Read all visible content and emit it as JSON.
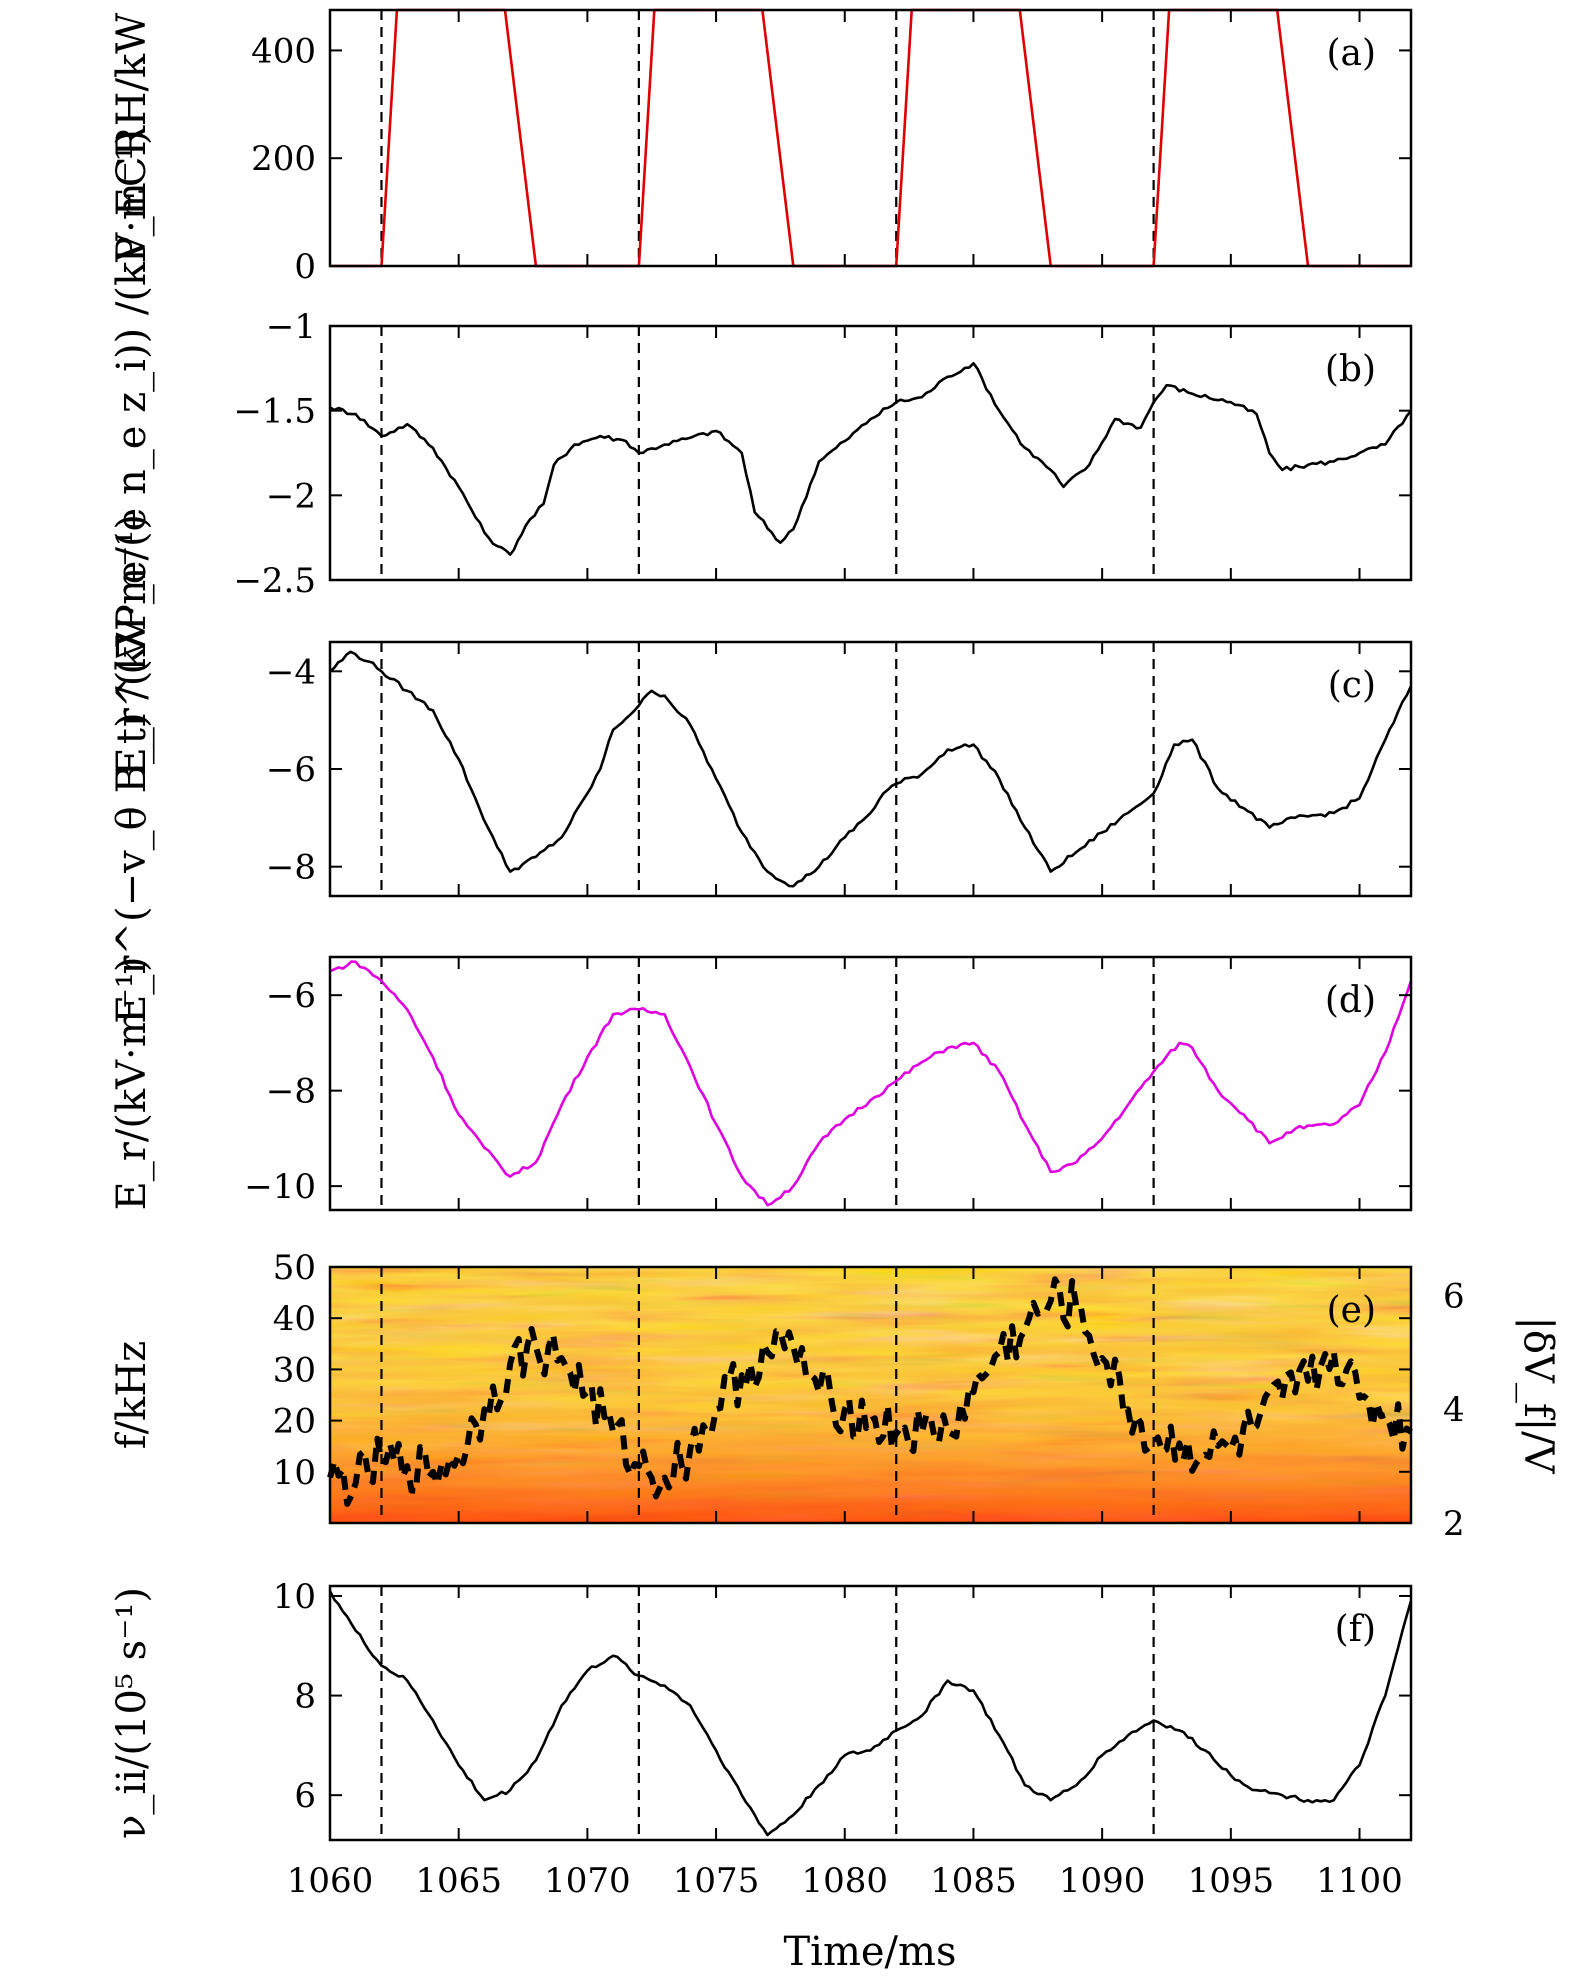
{
  "chart_data": [
    {
      "type": "line",
      "panel_label": "(a)",
      "ylabel": "P_ECRH/kW",
      "ylim": [
        0,
        475
      ],
      "yticks": [
        0,
        200,
        400
      ],
      "series": [
        {
          "name": "",
          "color": "#e00000",
          "points": [
            [
              1060,
              0
            ],
            [
              1062,
              0
            ],
            [
              1062.6,
              475
            ],
            [
              1066.8,
              475
            ],
            [
              1068,
              0
            ],
            [
              1072,
              0
            ],
            [
              1072.6,
              475
            ],
            [
              1076.8,
              475
            ],
            [
              1078,
              0
            ],
            [
              1082,
              0
            ],
            [
              1082.6,
              475
            ],
            [
              1086.8,
              475
            ],
            [
              1088,
              0
            ],
            [
              1092,
              0
            ],
            [
              1092.6,
              475
            ],
            [
              1096.8,
              475
            ],
            [
              1098,
              0
            ],
            [
              1102,
              0
            ]
          ]
        }
      ]
    },
    {
      "type": "line",
      "panel_label": "(b)",
      "ylabel": "E_r^(∇P_e/(e n_e z_i)) /(kV·m⁻¹)",
      "ylim": [
        -2.5,
        -1.0
      ],
      "yticks": [
        -2.5,
        -2.0,
        -1.5,
        -1.0
      ],
      "series": [
        {
          "name": "",
          "color": "#000000",
          "points": [
            [
              1060,
              -1.48
            ],
            [
              1061,
              -1.52
            ],
            [
              1062,
              -1.65
            ],
            [
              1063,
              -1.58
            ],
            [
              1064,
              -1.72
            ],
            [
              1065,
              -1.95
            ],
            [
              1066,
              -2.22
            ],
            [
              1066.5,
              -2.3
            ],
            [
              1067,
              -2.35
            ],
            [
              1067.6,
              -2.18
            ],
            [
              1068.3,
              -2.05
            ],
            [
              1068.7,
              -1.82
            ],
            [
              1069.5,
              -1.7
            ],
            [
              1070.5,
              -1.65
            ],
            [
              1071.5,
              -1.68
            ],
            [
              1072,
              -1.75
            ],
            [
              1073,
              -1.7
            ],
            [
              1074,
              -1.66
            ],
            [
              1075,
              -1.62
            ],
            [
              1076,
              -1.75
            ],
            [
              1076.5,
              -2.1
            ],
            [
              1077.5,
              -2.28
            ],
            [
              1078,
              -2.2
            ],
            [
              1079,
              -1.8
            ],
            [
              1080,
              -1.68
            ],
            [
              1081,
              -1.55
            ],
            [
              1082,
              -1.45
            ],
            [
              1083,
              -1.42
            ],
            [
              1084,
              -1.3
            ],
            [
              1085,
              -1.22
            ],
            [
              1086,
              -1.5
            ],
            [
              1087,
              -1.72
            ],
            [
              1088,
              -1.85
            ],
            [
              1088.5,
              -1.95
            ],
            [
              1089.5,
              -1.82
            ],
            [
              1090.5,
              -1.55
            ],
            [
              1091.5,
              -1.6
            ],
            [
              1092,
              -1.45
            ],
            [
              1092.5,
              -1.35
            ],
            [
              1093.5,
              -1.4
            ],
            [
              1095,
              -1.45
            ],
            [
              1096,
              -1.52
            ],
            [
              1096.5,
              -1.75
            ],
            [
              1097,
              -1.85
            ],
            [
              1098,
              -1.82
            ],
            [
              1099,
              -1.8
            ],
            [
              1100,
              -1.75
            ],
            [
              1101,
              -1.7
            ],
            [
              1102,
              -1.5
            ]
          ]
        }
      ]
    },
    {
      "type": "line",
      "panel_label": "(c)",
      "ylabel": "E_r^(−v_θ B_t) /(kV·m⁻¹)",
      "ylim": [
        -8.6,
        -3.4
      ],
      "yticks": [
        -8,
        -6,
        -4
      ],
      "series": [
        {
          "name": "",
          "color": "#000000",
          "points": [
            [
              1060,
              -4.0
            ],
            [
              1060.8,
              -3.6
            ],
            [
              1061.5,
              -3.8
            ],
            [
              1062,
              -4.0
            ],
            [
              1063,
              -4.4
            ],
            [
              1064,
              -4.8
            ],
            [
              1065,
              -5.8
            ],
            [
              1065.8,
              -6.8
            ],
            [
              1066.5,
              -7.6
            ],
            [
              1067,
              -8.1
            ],
            [
              1068,
              -7.8
            ],
            [
              1069,
              -7.4
            ],
            [
              1070,
              -6.5
            ],
            [
              1070.5,
              -6.0
            ],
            [
              1071,
              -5.2
            ],
            [
              1072,
              -4.7
            ],
            [
              1072.5,
              -4.4
            ],
            [
              1073,
              -4.5
            ],
            [
              1074,
              -5.1
            ],
            [
              1075,
              -6.2
            ],
            [
              1076,
              -7.3
            ],
            [
              1077,
              -8.1
            ],
            [
              1078,
              -8.4
            ],
            [
              1079,
              -8.0
            ],
            [
              1080,
              -7.4
            ],
            [
              1081,
              -6.9
            ],
            [
              1081.5,
              -6.5
            ],
            [
              1082,
              -6.3
            ],
            [
              1083,
              -6.1
            ],
            [
              1084,
              -5.6
            ],
            [
              1085,
              -5.5
            ],
            [
              1086,
              -6.2
            ],
            [
              1087,
              -7.2
            ],
            [
              1088,
              -8.1
            ],
            [
              1089,
              -7.7
            ],
            [
              1090,
              -7.3
            ],
            [
              1091,
              -6.9
            ],
            [
              1092,
              -6.5
            ],
            [
              1092.8,
              -5.5
            ],
            [
              1093.5,
              -5.4
            ],
            [
              1094.5,
              -6.4
            ],
            [
              1095.5,
              -6.8
            ],
            [
              1096.5,
              -7.2
            ],
            [
              1097.5,
              -7.0
            ],
            [
              1099,
              -6.9
            ],
            [
              1100,
              -6.6
            ],
            [
              1101,
              -5.4
            ],
            [
              1102,
              -4.3
            ]
          ]
        }
      ]
    },
    {
      "type": "line",
      "panel_label": "(d)",
      "ylabel": "E_r/(kV·m⁻¹)",
      "ylim": [
        -10.5,
        -5.2
      ],
      "yticks": [
        -10,
        -8,
        -6
      ],
      "series": [
        {
          "name": "",
          "color": "#e000e0",
          "points": [
            [
              1060,
              -5.5
            ],
            [
              1061,
              -5.3
            ],
            [
              1062,
              -5.7
            ],
            [
              1063,
              -6.3
            ],
            [
              1064,
              -7.3
            ],
            [
              1065,
              -8.5
            ],
            [
              1066,
              -9.2
            ],
            [
              1067,
              -9.8
            ],
            [
              1068,
              -9.5
            ],
            [
              1069,
              -8.3
            ],
            [
              1070,
              -7.3
            ],
            [
              1071,
              -6.4
            ],
            [
              1072,
              -6.3
            ],
            [
              1073,
              -6.4
            ],
            [
              1074,
              -7.5
            ],
            [
              1075,
              -8.7
            ],
            [
              1076,
              -9.8
            ],
            [
              1077,
              -10.4
            ],
            [
              1078,
              -10.0
            ],
            [
              1079,
              -9.1
            ],
            [
              1080,
              -8.6
            ],
            [
              1081,
              -8.2
            ],
            [
              1082,
              -7.8
            ],
            [
              1083,
              -7.4
            ],
            [
              1084,
              -7.1
            ],
            [
              1085,
              -7.0
            ],
            [
              1086,
              -7.6
            ],
            [
              1087,
              -8.7
            ],
            [
              1088,
              -9.7
            ],
            [
              1089,
              -9.5
            ],
            [
              1090,
              -9.0
            ],
            [
              1091,
              -8.3
            ],
            [
              1092,
              -7.6
            ],
            [
              1093,
              -7.0
            ],
            [
              1093.5,
              -7.1
            ],
            [
              1094.5,
              -8.0
            ],
            [
              1095.5,
              -8.5
            ],
            [
              1096.5,
              -9.1
            ],
            [
              1097.5,
              -8.8
            ],
            [
              1099,
              -8.7
            ],
            [
              1100,
              -8.3
            ],
            [
              1101,
              -7.2
            ],
            [
              1102,
              -5.7
            ]
          ]
        }
      ]
    },
    {
      "type": "heatmap",
      "panel_label": "(e)",
      "ylabel": "f/kHz",
      "ylabel_right": "|δV_f|/V",
      "ylim": [
        0,
        50
      ],
      "yticks": [
        10,
        20,
        30,
        40,
        50
      ],
      "ylim_right": [
        2,
        6.5
      ],
      "yticks_right": [
        2,
        4,
        6
      ],
      "series": [
        {
          "name": "",
          "color": "#000000",
          "axis": "right",
          "style": "dashed",
          "points": [
            [
              1060,
              2.8
            ],
            [
              1061,
              2.7
            ],
            [
              1062,
              3.1
            ],
            [
              1063,
              3.0
            ],
            [
              1064,
              2.9
            ],
            [
              1065,
              3.2
            ],
            [
              1066,
              4.0
            ],
            [
              1067,
              4.8
            ],
            [
              1068,
              5.1
            ],
            [
              1069,
              4.9
            ],
            [
              1070,
              4.3
            ],
            [
              1071,
              3.6
            ],
            [
              1072,
              3.0
            ],
            [
              1073,
              2.8
            ],
            [
              1074,
              3.3
            ],
            [
              1075,
              4.0
            ],
            [
              1076,
              4.6
            ],
            [
              1077,
              5.0
            ],
            [
              1078,
              5.1
            ],
            [
              1079,
              4.3
            ],
            [
              1080,
              4.0
            ],
            [
              1081,
              3.8
            ],
            [
              1082,
              3.6
            ],
            [
              1083,
              3.6
            ],
            [
              1084,
              3.6
            ],
            [
              1085,
              4.3
            ],
            [
              1086,
              5.0
            ],
            [
              1087,
              5.4
            ],
            [
              1088,
              5.9
            ],
            [
              1089,
              5.8
            ],
            [
              1090,
              4.9
            ],
            [
              1091,
              4.0
            ],
            [
              1092,
              3.4
            ],
            [
              1093,
              3.4
            ],
            [
              1094,
              3.2
            ],
            [
              1095,
              3.3
            ],
            [
              1096,
              3.7
            ],
            [
              1097,
              4.2
            ],
            [
              1098,
              4.5
            ],
            [
              1099,
              5.0
            ],
            [
              1100,
              4.2
            ],
            [
              1101,
              3.9
            ],
            [
              1102,
              3.6
            ]
          ]
        }
      ]
    },
    {
      "type": "line",
      "panel_label": "(f)",
      "ylabel": "ν_ii/(10⁵ s⁻¹)",
      "ylim": [
        5.1,
        10.2
      ],
      "yticks": [
        6,
        8,
        10
      ],
      "series": [
        {
          "name": "",
          "color": "#000000",
          "points": [
            [
              1060,
              10.1
            ],
            [
              1061,
              9.3
            ],
            [
              1062,
              8.6
            ],
            [
              1063,
              8.3
            ],
            [
              1064,
              7.5
            ],
            [
              1065,
              6.6
            ],
            [
              1066,
              5.9
            ],
            [
              1067,
              6.1
            ],
            [
              1068,
              6.7
            ],
            [
              1069,
              7.8
            ],
            [
              1070,
              8.5
            ],
            [
              1071,
              8.8
            ],
            [
              1072,
              8.4
            ],
            [
              1073,
              8.2
            ],
            [
              1074,
              7.8
            ],
            [
              1075,
              6.9
            ],
            [
              1076,
              6.0
            ],
            [
              1077,
              5.2
            ],
            [
              1078,
              5.6
            ],
            [
              1079,
              6.2
            ],
            [
              1080,
              6.8
            ],
            [
              1081,
              6.9
            ],
            [
              1082,
              7.3
            ],
            [
              1083,
              7.6
            ],
            [
              1084,
              8.3
            ],
            [
              1085,
              8.1
            ],
            [
              1086,
              7.2
            ],
            [
              1087,
              6.2
            ],
            [
              1088,
              5.9
            ],
            [
              1089,
              6.2
            ],
            [
              1090,
              6.8
            ],
            [
              1091,
              7.2
            ],
            [
              1092,
              7.5
            ],
            [
              1093,
              7.3
            ],
            [
              1094,
              6.9
            ],
            [
              1095,
              6.4
            ],
            [
              1096,
              6.1
            ],
            [
              1097,
              6.0
            ],
            [
              1098,
              5.9
            ],
            [
              1099,
              5.9
            ],
            [
              1100,
              6.6
            ],
            [
              1101,
              8.0
            ],
            [
              1102,
              9.9
            ]
          ]
        }
      ]
    }
  ],
  "x_axis": {
    "label": "Time/ms",
    "xlim": [
      1060,
      1102
    ],
    "ticks": [
      1060,
      1065,
      1070,
      1075,
      1080,
      1085,
      1090,
      1095,
      1100
    ]
  },
  "markers": {
    "dashed_times": [
      1062,
      1072,
      1082,
      1092
    ]
  }
}
